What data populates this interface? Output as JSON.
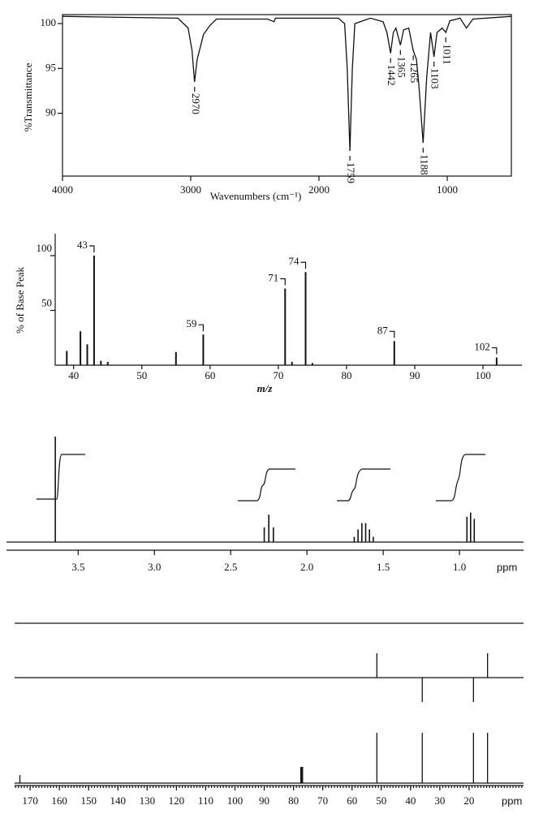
{
  "chart_data": [
    {
      "type": "line",
      "ylabel": "%Transmittance",
      "xlabel": "Wavenumbers (cm⁻¹)",
      "x": [
        4000,
        3100,
        3020,
        2990,
        2970,
        2950,
        2900,
        2850,
        2800,
        2400,
        2350,
        2340,
        1850,
        1800,
        1780,
        1759,
        1740,
        1720,
        1600,
        1500,
        1470,
        1442,
        1420,
        1400,
        1365,
        1340,
        1300,
        1265,
        1240,
        1220,
        1188,
        1160,
        1130,
        1103,
        1080,
        1040,
        1011,
        980,
        900,
        850,
        800,
        500
      ],
      "values": [
        100.8,
        100.6,
        99.5,
        97,
        93.5,
        96,
        98.8,
        99.8,
        100.5,
        100.5,
        100.2,
        100.6,
        100.6,
        100,
        95,
        85.8,
        95,
        100,
        100.6,
        100.2,
        99,
        96.7,
        99,
        99.5,
        97.6,
        99.3,
        99.5,
        97,
        96,
        93,
        86.7,
        94,
        99,
        96.3,
        99,
        99.5,
        99,
        100.3,
        100.6,
        99.5,
        100.5,
        100.8
      ],
      "xlim": [
        4000,
        500
      ],
      "ylim": [
        83,
        101
      ],
      "xticks": [
        4000,
        3000,
        2000,
        1000
      ],
      "yticks": [
        90,
        95,
        100
      ],
      "peak_labels": [
        2970,
        1759,
        1442,
        1365,
        1265,
        1188,
        1103,
        1011
      ],
      "color": "#111111"
    },
    {
      "type": "bar",
      "ylabel": "% of Base Peak",
      "xlabel": "m/z",
      "x": [
        39,
        41,
        42,
        43,
        44,
        45,
        55,
        59,
        71,
        72,
        74,
        75,
        87,
        102
      ],
      "values": [
        13,
        31,
        19,
        100,
        4,
        3,
        12,
        28,
        70,
        3,
        85,
        2,
        22,
        7
      ],
      "xlim": [
        37.3,
        105.7
      ],
      "ylim": [
        0,
        120
      ],
      "xticks": [
        40,
        50,
        60,
        70,
        80,
        90,
        100
      ],
      "yticks": [
        50,
        100
      ],
      "peak_labels": [
        43,
        59,
        71,
        74,
        87,
        102
      ],
      "color": "#111111"
    },
    {
      "type": "spectrum",
      "xlabel": "ppm",
      "x": [
        3.65,
        2.28,
        2.25,
        2.22,
        1.69,
        1.665,
        1.64,
        1.615,
        1.59,
        1.565,
        0.951,
        0.927,
        0.903
      ],
      "values": [
        100,
        14,
        26,
        14,
        5,
        12,
        18,
        18,
        12,
        5,
        24,
        28,
        22
      ],
      "xlim": [
        3.97,
        0.58
      ],
      "xticks": [
        3.5,
        {
          "value": 3,
          "label": "3.0"
        },
        2.5,
        {
          "value": 2,
          "label": "2.0"
        },
        1.5,
        {
          "value": 1,
          "label": "1.0"
        }
      ],
      "color": "#111111"
    },
    {
      "type": "dept",
      "xlabel": "ppm",
      "xlim": [
        175.3,
        1.4
      ],
      "xticks": [
        170,
        160,
        150,
        140,
        130,
        120,
        110,
        100,
        90,
        80,
        70,
        60,
        50,
        40,
        30,
        20
      ],
      "minor_tick_step": 1,
      "traces": [
        {
          "x": [
            51.5,
            36,
            18.5,
            13.7
          ],
          "values": [
            30,
            -30,
            -30,
            30
          ]
        },
        {
          "x": [
            173.5,
            77.5,
            77.2,
            76.9,
            51.5,
            36,
            18.5,
            13.7
          ],
          "values": [
            10,
            20,
            20,
            20,
            62,
            62,
            62,
            62
          ]
        }
      ],
      "color": "#111111"
    }
  ]
}
